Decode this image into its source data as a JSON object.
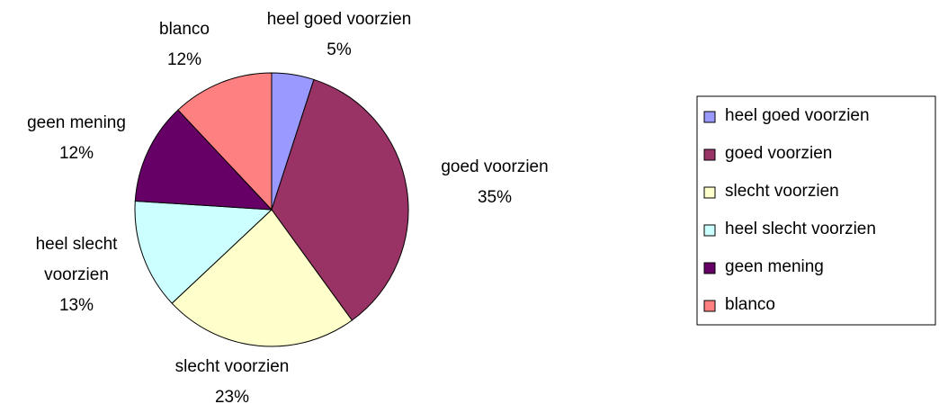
{
  "chart_data": {
    "type": "pie",
    "categories": [
      "heel goed voorzien",
      "goed voorzien",
      "slecht voorzien",
      "heel slecht voorzien",
      "geen mening",
      "blanco"
    ],
    "values": [
      5,
      35,
      23,
      13,
      12,
      12
    ],
    "value_labels": [
      "5%",
      "35%",
      "23%",
      "13%",
      "12%",
      "12%"
    ],
    "colors": [
      "#9999ff",
      "#993366",
      "#ffffcc",
      "#ccffff",
      "#660066",
      "#ff8080"
    ],
    "legend": "right"
  }
}
